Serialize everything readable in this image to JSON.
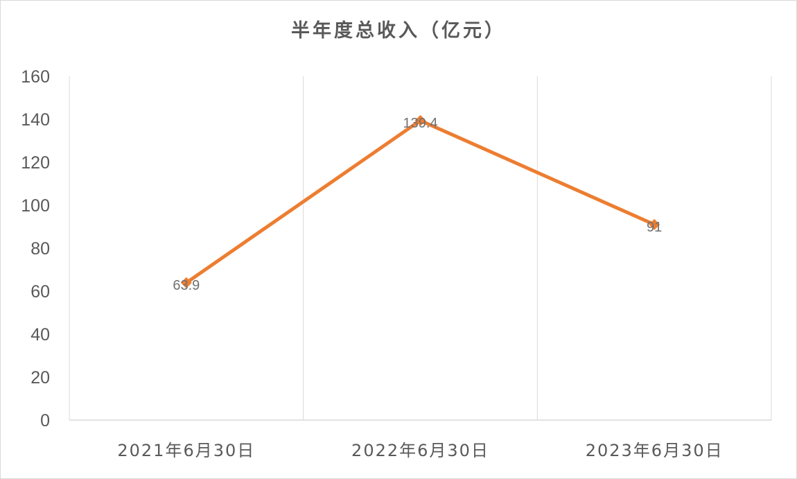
{
  "chart_data": {
    "type": "line",
    "title": "半年度总收入（亿元）",
    "categories": [
      "2021年6月30日",
      "2022年6月30日",
      "2023年6月30日"
    ],
    "series": [
      {
        "values": [
          63.9,
          139.4,
          91
        ],
        "labels": [
          "63.9",
          "139.4",
          "91"
        ]
      }
    ],
    "ylim": [
      0,
      160
    ],
    "yticks": [
      0,
      20,
      40,
      60,
      80,
      100,
      120,
      140,
      160
    ],
    "grid": "vertical",
    "line_color": "#ed7d31",
    "marker": "diamond",
    "xlabel": "",
    "ylabel": ""
  }
}
